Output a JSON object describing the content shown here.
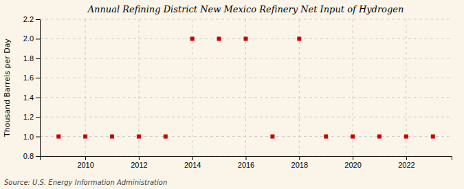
{
  "chart_data": {
    "type": "scatter",
    "title": "Annual Refining District New Mexico Refinery Net Input of Hydrogen",
    "ylabel": "Thousand Barrels per Day",
    "annotation": "Source: U.S. Energy Information Administration",
    "x": [
      2009,
      2010,
      2011,
      2012,
      2013,
      2014,
      2015,
      2016,
      2017,
      2018,
      2019,
      2020,
      2021,
      2022,
      2023
    ],
    "values": [
      1.0,
      1.0,
      1.0,
      1.0,
      1.0,
      2.0,
      2.0,
      2.0,
      1.0,
      2.0,
      1.0,
      1.0,
      1.0,
      1.0,
      1.0
    ],
    "xlim": [
      2008.3,
      2023.7
    ],
    "ylim": [
      0.8,
      2.2
    ],
    "xticks": [
      2010,
      2012,
      2014,
      2016,
      2018,
      2020,
      2022
    ],
    "yticks": [
      0.8,
      {
        "value": 1.0,
        "label": "1.0"
      },
      1.2,
      1.4,
      1.6,
      1.8,
      {
        "value": 2.0,
        "label": "2.0"
      },
      2.2
    ],
    "color": "#cc0000",
    "marker": "square",
    "grid": true
  }
}
